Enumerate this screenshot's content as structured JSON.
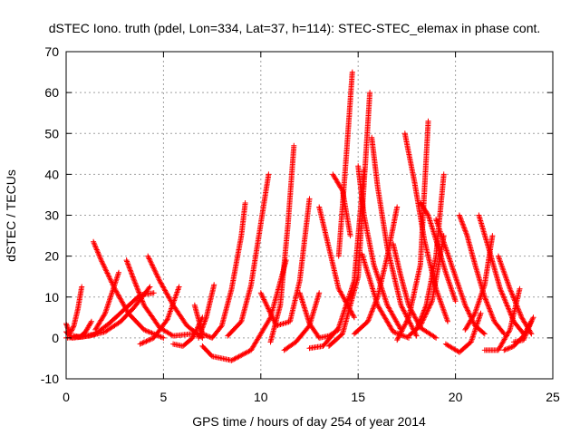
{
  "chart_data": {
    "type": "scatter",
    "title": "dSTEC Iono. truth (pdel, Lon=334, Lat=37, h=114): STEC-STEC_elemax in phase cont.",
    "xlabel": "GPS time / hours of day 254 of year 2014",
    "ylabel": "dSTEC  / TECUs",
    "xlim": [
      0,
      25
    ],
    "ylim": [
      -10,
      70
    ],
    "xticks": [
      0,
      5,
      10,
      15,
      20,
      25
    ],
    "yticks": [
      -10,
      0,
      10,
      20,
      30,
      40,
      50,
      60,
      70
    ],
    "grid": true,
    "legend": "none",
    "marker": "plus",
    "color": "#ff0000",
    "series": [
      {
        "x": [
          0.0,
          0.2,
          0.4,
          0.6,
          0.8
        ],
        "y": [
          3.5,
          1.0,
          3.0,
          7.0,
          12.5
        ]
      },
      {
        "x": [
          0.0,
          0.3,
          0.7,
          1.0,
          1.3
        ],
        "y": [
          1.5,
          0.0,
          0.2,
          1.5,
          4.0
        ]
      },
      {
        "x": [
          0.0,
          0.5,
          1.2,
          2.0,
          2.8,
          3.5,
          4.3
        ],
        "y": [
          0.0,
          0.2,
          0.5,
          1.5,
          4.0,
          7.5,
          12.5
        ]
      },
      {
        "x": [
          0.4,
          0.8,
          1.5,
          2.2,
          3.0,
          3.8,
          4.5
        ],
        "y": [
          0.5,
          0.2,
          1.0,
          3.5,
          7.0,
          10.5,
          11.0
        ]
      },
      {
        "x": [
          1.4,
          1.8,
          2.5,
          3.2,
          4.0,
          5.0
        ],
        "y": [
          23.5,
          19.0,
          12.0,
          6.0,
          2.0,
          0.0
        ]
      },
      {
        "x": [
          1.5,
          2.0,
          2.7
        ],
        "y": [
          2.0,
          6.0,
          16.0
        ]
      },
      {
        "x": [
          3.1,
          3.5,
          4.0,
          4.8,
          5.5,
          6.5
        ],
        "y": [
          19.0,
          14.0,
          8.0,
          2.5,
          0.5,
          1.0
        ]
      },
      {
        "x": [
          4.2,
          4.8,
          5.5,
          6.2,
          7.0
        ],
        "y": [
          20.0,
          14.0,
          8.0,
          3.0,
          0.0
        ]
      },
      {
        "x": [
          3.8,
          4.5,
          5.2,
          5.8
        ],
        "y": [
          -1.5,
          0.0,
          4.5,
          12.5
        ]
      },
      {
        "x": [
          5.5,
          6.0,
          6.5,
          7.0
        ],
        "y": [
          -1.5,
          -2.0,
          0.0,
          5.0
        ]
      },
      {
        "x": [
          6.6,
          7.0,
          7.5,
          8.0,
          8.5,
          9.0,
          9.2
        ],
        "y": [
          8.0,
          1.0,
          0.0,
          3.0,
          12.0,
          25.0,
          33.0
        ]
      },
      {
        "x": [
          7.0,
          7.5,
          8.5,
          9.5,
          10.5,
          11.3
        ],
        "y": [
          -2.0,
          -4.5,
          -5.5,
          -3.0,
          5.0,
          19.0
        ]
      },
      {
        "x": [
          6.8,
          7.2,
          7.6
        ],
        "y": [
          0.0,
          5.0,
          13.0
        ]
      },
      {
        "x": [
          8.3,
          9.0,
          9.5,
          10.0,
          10.4
        ],
        "y": [
          0.5,
          4.0,
          13.0,
          28.0,
          40.0
        ]
      },
      {
        "x": [
          10.0,
          10.8,
          11.5,
          12.0,
          12.5
        ],
        "y": [
          11.0,
          3.0,
          4.0,
          14.0,
          34.0
        ]
      },
      {
        "x": [
          10.5,
          11.0,
          11.4,
          11.7
        ],
        "y": [
          -1.0,
          8.0,
          28.0,
          47.0
        ]
      },
      {
        "x": [
          11.2,
          11.8,
          12.5,
          13.0
        ],
        "y": [
          -3.0,
          -1.0,
          3.0,
          11.0
        ]
      },
      {
        "x": [
          12.0,
          12.5,
          13.0,
          13.5,
          14.0
        ],
        "y": [
          11.0,
          3.5,
          0.0,
          0.5,
          2.0
        ]
      },
      {
        "x": [
          12.5,
          13.2,
          14.0,
          14.8,
          15.3
        ],
        "y": [
          -2.5,
          -2.0,
          2.5,
          14.0,
          41.0
        ]
      },
      {
        "x": [
          13.0,
          13.5,
          14.0,
          14.8
        ],
        "y": [
          32.0,
          22.0,
          12.0,
          5.0
        ]
      },
      {
        "x": [
          13.7,
          14.2,
          14.6
        ],
        "y": [
          40.0,
          36.0,
          25.0
        ]
      },
      {
        "x": [
          14.0,
          14.4,
          14.7
        ],
        "y": [
          20.0,
          45.0,
          65.0
        ]
      },
      {
        "x": [
          13.5,
          14.2,
          15.0,
          15.6
        ],
        "y": [
          -2.0,
          1.0,
          15.0,
          60.0
        ]
      },
      {
        "x": [
          15.0,
          15.3,
          15.8,
          16.5,
          17.2
        ],
        "y": [
          42.0,
          30.0,
          18.0,
          8.0,
          2.0
        ]
      },
      {
        "x": [
          15.7,
          16.0,
          16.5,
          17.2,
          18.0
        ],
        "y": [
          49.0,
          37.0,
          22.0,
          8.0,
          0.5
        ]
      },
      {
        "x": [
          14.8,
          15.5,
          16.0,
          16.5,
          17.0
        ],
        "y": [
          1.0,
          4.0,
          10.0,
          20.0,
          32.0
        ]
      },
      {
        "x": [
          15.2,
          16.0,
          16.8,
          17.6
        ],
        "y": [
          20.5,
          8.0,
          1.5,
          0.0
        ]
      },
      {
        "x": [
          16.8,
          17.2,
          17.6,
          18.2,
          19.0
        ],
        "y": [
          23.0,
          15.0,
          8.0,
          2.5,
          0.0
        ]
      },
      {
        "x": [
          17.0,
          17.6,
          18.2,
          18.6
        ],
        "y": [
          -0.5,
          5.0,
          18.0,
          53.0
        ]
      },
      {
        "x": [
          17.4,
          17.9,
          18.4,
          19.0,
          19.6
        ],
        "y": [
          50.0,
          38.0,
          24.0,
          12.0,
          4.0
        ]
      },
      {
        "x": [
          18.2,
          18.6,
          19.0,
          19.5,
          20.0
        ],
        "y": [
          33.0,
          30.0,
          24.0,
          16.0,
          9.0
        ]
      },
      {
        "x": [
          18.0,
          18.5,
          19.0,
          19.4
        ],
        "y": [
          2.0,
          8.0,
          20.0,
          40.0
        ]
      },
      {
        "x": [
          19.0,
          19.5,
          20.0,
          20.5,
          21.0,
          21.5
        ],
        "y": [
          29.0,
          22.0,
          15.0,
          8.0,
          3.0,
          1.0
        ]
      },
      {
        "x": [
          19.5,
          20.2,
          20.8,
          21.3
        ],
        "y": [
          -1.5,
          -3.5,
          -1.0,
          6.0
        ]
      },
      {
        "x": [
          20.2,
          20.6,
          21.0,
          21.5,
          22.0,
          22.5
        ],
        "y": [
          30.0,
          25.0,
          18.0,
          10.0,
          4.0,
          1.0
        ]
      },
      {
        "x": [
          20.5,
          21.0,
          21.5,
          21.9
        ],
        "y": [
          2.0,
          6.0,
          13.0,
          25.0
        ]
      },
      {
        "x": [
          21.2,
          21.7,
          22.3,
          23.0,
          23.5
        ],
        "y": [
          30.0,
          22.0,
          12.0,
          4.0,
          1.0
        ]
      },
      {
        "x": [
          21.5,
          22.2,
          22.8,
          23.3
        ],
        "y": [
          -3.0,
          -3.0,
          2.0,
          12.0
        ]
      },
      {
        "x": [
          22.2,
          22.8,
          23.4,
          23.9
        ],
        "y": [
          20.0,
          12.0,
          5.0,
          1.0
        ]
      },
      {
        "x": [
          22.5,
          23.0,
          23.5,
          24.0
        ],
        "y": [
          -3.0,
          -2.0,
          0.5,
          5.0
        ]
      },
      {
        "x": [
          23.0,
          23.5,
          23.9
        ],
        "y": [
          -1.0,
          -0.5,
          4.0
        ]
      },
      {
        "x": [
          17.6,
          18.2,
          18.8,
          19.4
        ],
        "y": [
          0.5,
          3.0,
          9.0,
          25.0
        ]
      }
    ]
  }
}
